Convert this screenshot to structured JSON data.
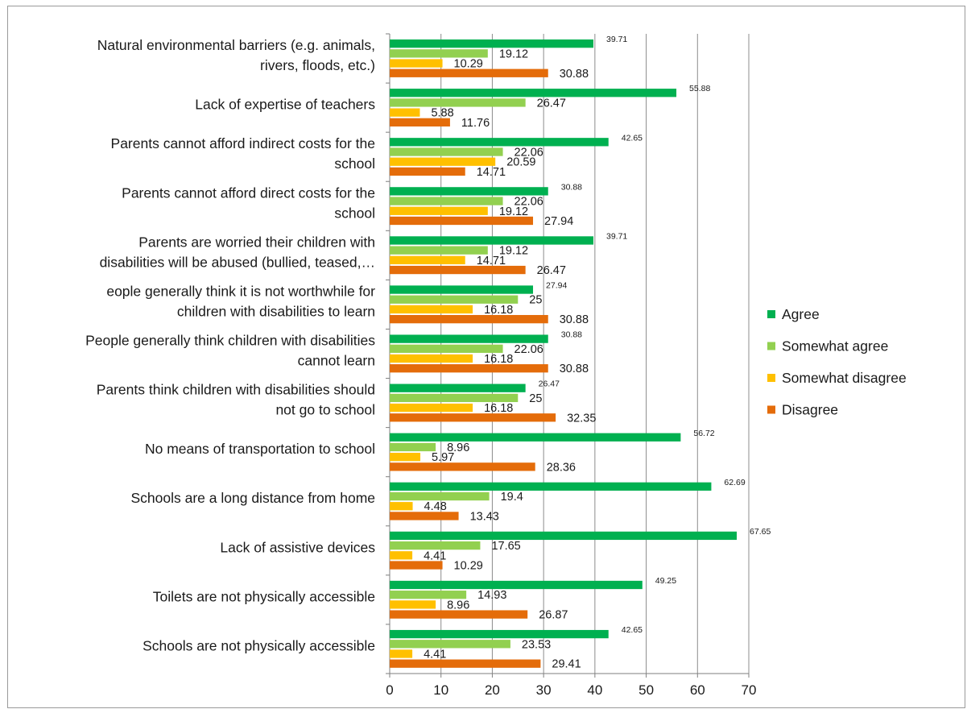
{
  "chart_data": {
    "type": "bar",
    "orientation": "horizontal",
    "categories": [
      [
        "Natural environmental barriers (e.g. animals,",
        "rivers, floods, etc.)"
      ],
      [
        "Lack of expertise of teachers"
      ],
      [
        "Parents cannot afford indirect costs for the",
        "school"
      ],
      [
        "Parents cannot afford direct costs for the",
        "school"
      ],
      [
        "Parents are worried their children with",
        "disabilities will be abused (bullied, teased,…"
      ],
      [
        "eople generally think it is not worthwhile for",
        "children with disabilities to learn"
      ],
      [
        "People generally think children with disabilities",
        "cannot learn"
      ],
      [
        "Parents think children with disabilities should",
        "not go to school"
      ],
      [
        "No means of transportation to school"
      ],
      [
        "Schools are a long distance from home"
      ],
      [
        "Lack of assistive devices"
      ],
      [
        "Toilets are not physically accessible"
      ],
      [
        "Schools are not physically accessible"
      ]
    ],
    "series": [
      {
        "name": "Agree",
        "color": "#00b050",
        "values": [
          39.71,
          55.88,
          42.65,
          30.88,
          39.71,
          27.94,
          30.88,
          26.47,
          56.72,
          62.69,
          67.65,
          49.25,
          42.65
        ]
      },
      {
        "name": "Somewhat agree",
        "color": "#92d050",
        "values": [
          19.12,
          26.47,
          22.06,
          22.06,
          19.12,
          25,
          22.06,
          25,
          8.96,
          19.4,
          17.65,
          14.93,
          23.53
        ]
      },
      {
        "name": "Somewhat disagree",
        "color": "#ffc000",
        "values": [
          10.29,
          5.88,
          20.59,
          19.12,
          14.71,
          16.18,
          16.18,
          16.18,
          5.97,
          4.48,
          4.41,
          8.96,
          4.41
        ]
      },
      {
        "name": "Disagree",
        "color": "#e46c0a",
        "values": [
          30.88,
          11.76,
          14.71,
          27.94,
          26.47,
          30.88,
          30.88,
          32.35,
          28.36,
          13.43,
          10.29,
          26.87,
          29.41
        ]
      }
    ],
    "xlim": [
      0,
      70
    ],
    "xticks": [
      0,
      10,
      20,
      30,
      40,
      50,
      60,
      70
    ],
    "grid": true,
    "legend_position": "right"
  }
}
